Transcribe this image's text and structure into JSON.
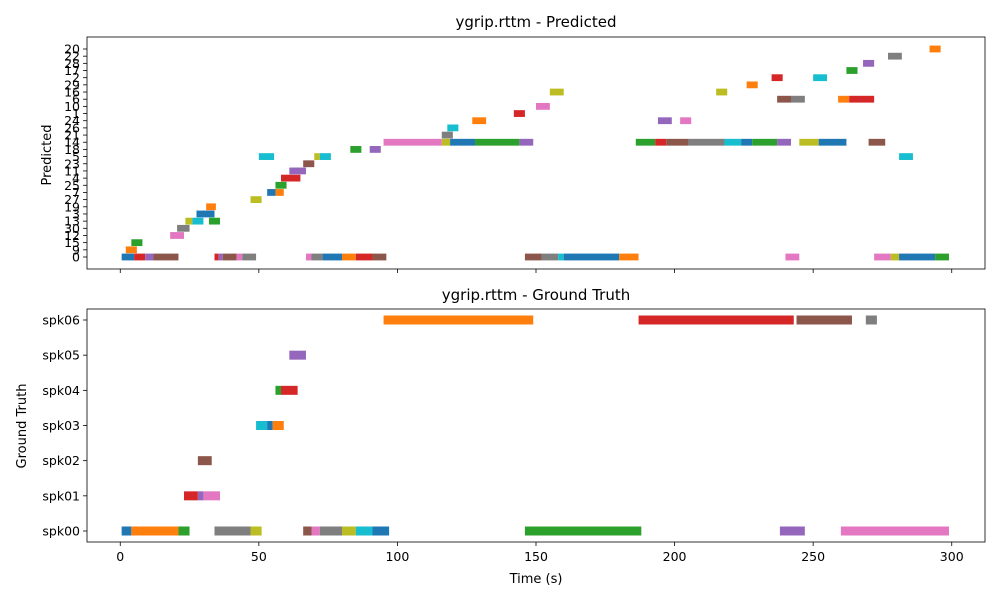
{
  "colors": [
    "#1f77b4",
    "#ff7f0e",
    "#2ca02c",
    "#d62728",
    "#9467bd",
    "#8c564b",
    "#e377c2",
    "#7f7f7f",
    "#bcbd22",
    "#17becf"
  ],
  "chart_data": [
    {
      "type": "gantt",
      "title": "ygrip.rttm - Predicted",
      "xlabel": "",
      "ylabel": "Predicted",
      "xlim": [
        -12,
        312
      ],
      "xticks": [
        0,
        50,
        100,
        150,
        200,
        250,
        300
      ],
      "show_xtick_labels": false,
      "categories": [
        "0",
        "9",
        "15",
        "12",
        "30",
        "13",
        "3",
        "19",
        "27",
        "7",
        "25",
        "4",
        "11",
        "23",
        "5",
        "18",
        "14",
        "21",
        "26",
        "24",
        "1",
        "10",
        "6",
        "16",
        "29",
        "2",
        "17",
        "28",
        "22",
        "20"
      ],
      "segments": [
        {
          "row": "0",
          "start": 0.5,
          "end": 5,
          "color": 0
        },
        {
          "row": "0",
          "start": 5,
          "end": 9,
          "color": 3
        },
        {
          "row": "0",
          "start": 9,
          "end": 12,
          "color": 4
        },
        {
          "row": "0",
          "start": 12,
          "end": 21,
          "color": 5
        },
        {
          "row": "0",
          "start": 34,
          "end": 35.5,
          "color": 3
        },
        {
          "row": "0",
          "start": 35.5,
          "end": 37,
          "color": 4
        },
        {
          "row": "0",
          "start": 37,
          "end": 42,
          "color": 5
        },
        {
          "row": "0",
          "start": 42,
          "end": 44,
          "color": 6
        },
        {
          "row": "0",
          "start": 44,
          "end": 49,
          "color": 7
        },
        {
          "row": "0",
          "start": 67,
          "end": 69,
          "color": 6
        },
        {
          "row": "0",
          "start": 69,
          "end": 73,
          "color": 7
        },
        {
          "row": "0",
          "start": 73,
          "end": 80,
          "color": 0
        },
        {
          "row": "0",
          "start": 80,
          "end": 85,
          "color": 1
        },
        {
          "row": "0",
          "start": 85,
          "end": 91,
          "color": 3
        },
        {
          "row": "0",
          "start": 91,
          "end": 96,
          "color": 5
        },
        {
          "row": "0",
          "start": 146,
          "end": 152,
          "color": 5
        },
        {
          "row": "0",
          "start": 152,
          "end": 158,
          "color": 7
        },
        {
          "row": "0",
          "start": 158,
          "end": 160,
          "color": 9
        },
        {
          "row": "0",
          "start": 160,
          "end": 180,
          "color": 0
        },
        {
          "row": "0",
          "start": 180,
          "end": 187,
          "color": 1
        },
        {
          "row": "0",
          "start": 240,
          "end": 245,
          "color": 6
        },
        {
          "row": "0",
          "start": 272,
          "end": 278,
          "color": 6
        },
        {
          "row": "0",
          "start": 278,
          "end": 281,
          "color": 8
        },
        {
          "row": "0",
          "start": 281,
          "end": 294,
          "color": 0
        },
        {
          "row": "0",
          "start": 294,
          "end": 299,
          "color": 2
        },
        {
          "row": "9",
          "start": 2,
          "end": 6,
          "color": 1
        },
        {
          "row": "15",
          "start": 4,
          "end": 8,
          "color": 2
        },
        {
          "row": "12",
          "start": 18,
          "end": 23,
          "color": 6
        },
        {
          "row": "30",
          "start": 20.5,
          "end": 25,
          "color": 7
        },
        {
          "row": "13",
          "start": 23.5,
          "end": 26,
          "color": 8
        },
        {
          "row": "13",
          "start": 26,
          "end": 30,
          "color": 9
        },
        {
          "row": "13",
          "start": 32,
          "end": 36,
          "color": 2
        },
        {
          "row": "3",
          "start": 27.5,
          "end": 34,
          "color": 0
        },
        {
          "row": "19",
          "start": 31,
          "end": 34.5,
          "color": 1
        },
        {
          "row": "27",
          "start": 47,
          "end": 51,
          "color": 8
        },
        {
          "row": "7",
          "start": 53,
          "end": 56,
          "color": 0
        },
        {
          "row": "7",
          "start": 56,
          "end": 59,
          "color": 1
        },
        {
          "row": "25",
          "start": 56,
          "end": 60,
          "color": 2
        },
        {
          "row": "4",
          "start": 58,
          "end": 65,
          "color": 3
        },
        {
          "row": "11",
          "start": 61,
          "end": 67,
          "color": 4
        },
        {
          "row": "23",
          "start": 66,
          "end": 70,
          "color": 5
        },
        {
          "row": "5",
          "start": 50,
          "end": 55.5,
          "color": 9
        },
        {
          "row": "5",
          "start": 70,
          "end": 72,
          "color": 8
        },
        {
          "row": "5",
          "start": 72,
          "end": 76,
          "color": 9
        },
        {
          "row": "5",
          "start": 281,
          "end": 286,
          "color": 9
        },
        {
          "row": "18",
          "start": 83,
          "end": 87,
          "color": 2
        },
        {
          "row": "18",
          "start": 90,
          "end": 94,
          "color": 4
        },
        {
          "row": "14",
          "start": 95,
          "end": 116,
          "color": 6
        },
        {
          "row": "14",
          "start": 116,
          "end": 119,
          "color": 8
        },
        {
          "row": "14",
          "start": 119,
          "end": 128,
          "color": 0
        },
        {
          "row": "14",
          "start": 128,
          "end": 144,
          "color": 2
        },
        {
          "row": "14",
          "start": 144,
          "end": 149,
          "color": 4
        },
        {
          "row": "14",
          "start": 186,
          "end": 193,
          "color": 2
        },
        {
          "row": "14",
          "start": 193,
          "end": 197,
          "color": 3
        },
        {
          "row": "14",
          "start": 197,
          "end": 205,
          "color": 5
        },
        {
          "row": "14",
          "start": 205,
          "end": 218,
          "color": 7
        },
        {
          "row": "14",
          "start": 218,
          "end": 224,
          "color": 9
        },
        {
          "row": "14",
          "start": 224,
          "end": 228,
          "color": 0
        },
        {
          "row": "14",
          "start": 228,
          "end": 237,
          "color": 2
        },
        {
          "row": "14",
          "start": 237,
          "end": 242,
          "color": 4
        },
        {
          "row": "14",
          "start": 245,
          "end": 252,
          "color": 8
        },
        {
          "row": "14",
          "start": 252,
          "end": 262,
          "color": 0
        },
        {
          "row": "14",
          "start": 270,
          "end": 276,
          "color": 5
        },
        {
          "row": "21",
          "start": 116,
          "end": 120,
          "color": 7
        },
        {
          "row": "26",
          "start": 118,
          "end": 122,
          "color": 9
        },
        {
          "row": "24",
          "start": 127,
          "end": 132,
          "color": 1
        },
        {
          "row": "24",
          "start": 194,
          "end": 199,
          "color": 4
        },
        {
          "row": "24",
          "start": 202,
          "end": 206,
          "color": 6
        },
        {
          "row": "1",
          "start": 142,
          "end": 146,
          "color": 3
        },
        {
          "row": "10",
          "start": 150,
          "end": 155,
          "color": 6
        },
        {
          "row": "6",
          "start": 237,
          "end": 242,
          "color": 5
        },
        {
          "row": "6",
          "start": 242,
          "end": 247,
          "color": 7
        },
        {
          "row": "6",
          "start": 259,
          "end": 263,
          "color": 1
        },
        {
          "row": "6",
          "start": 263,
          "end": 272,
          "color": 3
        },
        {
          "row": "16",
          "start": 155,
          "end": 160,
          "color": 8
        },
        {
          "row": "16",
          "start": 215,
          "end": 219,
          "color": 8
        },
        {
          "row": "29",
          "start": 226,
          "end": 230,
          "color": 1
        },
        {
          "row": "2",
          "start": 235,
          "end": 239,
          "color": 3
        },
        {
          "row": "2",
          "start": 250,
          "end": 255,
          "color": 9
        },
        {
          "row": "17",
          "start": 262,
          "end": 266,
          "color": 2
        },
        {
          "row": "28",
          "start": 268,
          "end": 272,
          "color": 4
        },
        {
          "row": "22",
          "start": 277,
          "end": 282,
          "color": 7
        },
        {
          "row": "20",
          "start": 292,
          "end": 296,
          "color": 1
        }
      ]
    },
    {
      "type": "gantt",
      "title": "ygrip.rttm - Ground Truth",
      "xlabel": "Time (s)",
      "ylabel": "Ground Truth",
      "xlim": [
        -12,
        312
      ],
      "xticks": [
        0,
        50,
        100,
        150,
        200,
        250,
        300
      ],
      "show_xtick_labels": true,
      "categories": [
        "spk00",
        "spk01",
        "spk02",
        "spk03",
        "spk04",
        "spk05",
        "spk06"
      ],
      "segments": [
        {
          "row": "spk00",
          "start": 0.5,
          "end": 4,
          "color": 0
        },
        {
          "row": "spk00",
          "start": 4,
          "end": 21,
          "color": 1
        },
        {
          "row": "spk00",
          "start": 21,
          "end": 25,
          "color": 2
        },
        {
          "row": "spk00",
          "start": 34,
          "end": 47,
          "color": 7
        },
        {
          "row": "spk00",
          "start": 47,
          "end": 51,
          "color": 8
        },
        {
          "row": "spk00",
          "start": 66,
          "end": 69,
          "color": 5
        },
        {
          "row": "spk00",
          "start": 69,
          "end": 72,
          "color": 6
        },
        {
          "row": "spk00",
          "start": 72,
          "end": 80,
          "color": 7
        },
        {
          "row": "spk00",
          "start": 80,
          "end": 85,
          "color": 8
        },
        {
          "row": "spk00",
          "start": 85,
          "end": 91,
          "color": 9
        },
        {
          "row": "spk00",
          "start": 91,
          "end": 97,
          "color": 0
        },
        {
          "row": "spk00",
          "start": 146,
          "end": 188,
          "color": 2
        },
        {
          "row": "spk00",
          "start": 238,
          "end": 247,
          "color": 4
        },
        {
          "row": "spk00",
          "start": 260,
          "end": 299,
          "color": 6
        },
        {
          "row": "spk01",
          "start": 23,
          "end": 28,
          "color": 3
        },
        {
          "row": "spk01",
          "start": 28,
          "end": 30,
          "color": 4
        },
        {
          "row": "spk01",
          "start": 30,
          "end": 36,
          "color": 6
        },
        {
          "row": "spk02",
          "start": 28,
          "end": 33,
          "color": 5
        },
        {
          "row": "spk03",
          "start": 49,
          "end": 53,
          "color": 9
        },
        {
          "row": "spk03",
          "start": 53,
          "end": 55,
          "color": 0
        },
        {
          "row": "spk03",
          "start": 55,
          "end": 59,
          "color": 1
        },
        {
          "row": "spk04",
          "start": 56,
          "end": 58,
          "color": 2
        },
        {
          "row": "spk04",
          "start": 58,
          "end": 64,
          "color": 3
        },
        {
          "row": "spk05",
          "start": 61,
          "end": 67,
          "color": 4
        },
        {
          "row": "spk06",
          "start": 95,
          "end": 149,
          "color": 1
        },
        {
          "row": "spk06",
          "start": 187,
          "end": 243,
          "color": 3
        },
        {
          "row": "spk06",
          "start": 244,
          "end": 264,
          "color": 5
        },
        {
          "row": "spk06",
          "start": 269,
          "end": 273,
          "color": 7
        }
      ]
    }
  ]
}
